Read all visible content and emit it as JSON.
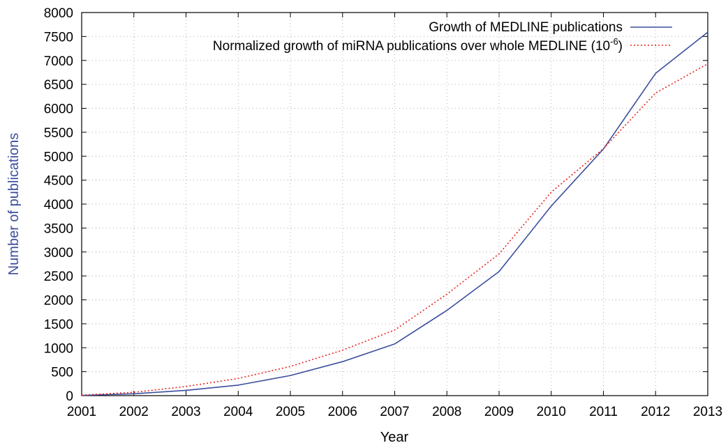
{
  "chart_data": {
    "type": "line",
    "title": "",
    "xlabel": "Year",
    "ylabel": "Number of publications",
    "xlim": [
      2001,
      2013
    ],
    "ylim": [
      0,
      8000
    ],
    "x_ticks": [
      "2001",
      "2002",
      "2003",
      "2004",
      "2005",
      "2006",
      "2007",
      "2008",
      "2009",
      "2010",
      "2011",
      "2012",
      "2013"
    ],
    "y_ticks": [
      "0",
      "500",
      "1000",
      "1500",
      "2000",
      "2500",
      "3000",
      "3500",
      "4000",
      "4500",
      "5000",
      "5500",
      "6000",
      "6500",
      "7000",
      "7500",
      "8000"
    ],
    "grid": true,
    "legend_position": "top-right",
    "x": [
      2001,
      2002,
      2003,
      2004,
      2005,
      2006,
      2007,
      2008,
      2009,
      2010,
      2011,
      2012,
      2013
    ],
    "series": [
      {
        "name": "Growth of MEDLINE publications",
        "color": "#3a4e9c",
        "style": "solid",
        "values": [
          5,
          40,
          110,
          220,
          420,
          710,
          1080,
          1780,
          2590,
          3960,
          5150,
          6730,
          7590
        ]
      },
      {
        "name": "Normalized growth of miRNA publications over whole MEDLINE (10",
        "name_superscript": "-6",
        "name_suffix": ")",
        "color": "#e8201c",
        "style": "dotted",
        "values": [
          10,
          70,
          190,
          360,
          610,
          950,
          1370,
          2120,
          2960,
          4250,
          5160,
          6320,
          6930
        ]
      }
    ]
  }
}
